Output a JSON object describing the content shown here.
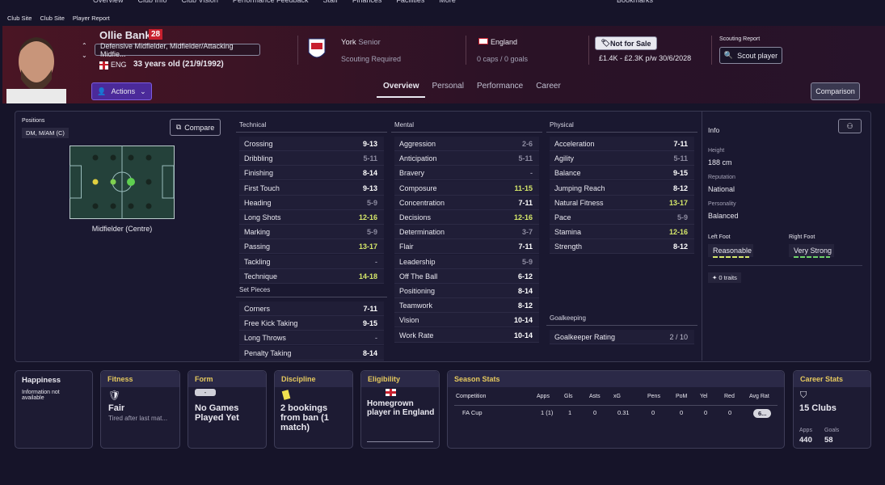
{
  "nav": {
    "items": [
      "Overview",
      "Club Info",
      "Club Vision",
      "Performance Feedback",
      "Staff",
      "Finances",
      "Facilities",
      "More"
    ],
    "bookmarks": "Bookmarks"
  },
  "breadcrumb": [
    "Club Site",
    "Club Site",
    "Player Report"
  ],
  "player": {
    "name": "Ollie Banks",
    "number": "28",
    "positions": "Defensive Midfielder, Midfielder/Attacking Midfie...",
    "nation": "ENG",
    "age": "33 years old (21/9/1992)"
  },
  "club": {
    "name": "York",
    "squad": "Senior",
    "status": "Scouting Required"
  },
  "international": {
    "country": "England",
    "record": "0 caps / 0 goals"
  },
  "transfer": {
    "status": "Not for Sale",
    "wage": "£1.4K - £2.3K p/w",
    "expiry": "30/6/2028"
  },
  "scouting": {
    "label": "Scouting Report",
    "button": "Scout player"
  },
  "actions": "Actions",
  "tabs": [
    "Overview",
    "Personal",
    "Performance",
    "Career"
  ],
  "comparison": "Comparison",
  "positions": {
    "label": "Positions",
    "value": "DM, M/AM (C)",
    "compare": "Compare",
    "role": "Midfielder (Centre)"
  },
  "technical": {
    "title": "Technical",
    "rows": [
      [
        "Crossing",
        "9-13"
      ],
      [
        "Dribbling",
        "5-11"
      ],
      [
        "Finishing",
        "8-14"
      ],
      [
        "First Touch",
        "9-13"
      ],
      [
        "Heading",
        "5-9"
      ],
      [
        "Long Shots",
        "12-16"
      ],
      [
        "Marking",
        "5-9"
      ],
      [
        "Passing",
        "13-17"
      ],
      [
        "Tackling",
        "-"
      ],
      [
        "Technique",
        "14-18"
      ]
    ]
  },
  "set_pieces": {
    "title": "Set Pieces",
    "rows": [
      [
        "Corners",
        "7-11"
      ],
      [
        "Free Kick Taking",
        "9-15"
      ],
      [
        "Long Throws",
        "-"
      ],
      [
        "Penalty Taking",
        "8-14"
      ]
    ]
  },
  "mental": {
    "title": "Mental",
    "rows": [
      [
        "Aggression",
        "2-6"
      ],
      [
        "Anticipation",
        "5-11"
      ],
      [
        "Bravery",
        "-"
      ],
      [
        "Composure",
        "11-15"
      ],
      [
        "Concentration",
        "7-11"
      ],
      [
        "Decisions",
        "12-16"
      ],
      [
        "Determination",
        "3-7"
      ],
      [
        "Flair",
        "7-11"
      ],
      [
        "Leadership",
        "5-9"
      ],
      [
        "Off The Ball",
        "6-12"
      ],
      [
        "Positioning",
        "8-14"
      ],
      [
        "Teamwork",
        "8-12"
      ],
      [
        "Vision",
        "10-14"
      ],
      [
        "Work Rate",
        "10-14"
      ]
    ]
  },
  "physical": {
    "title": "Physical",
    "rows": [
      [
        "Acceleration",
        "7-11"
      ],
      [
        "Agility",
        "5-11"
      ],
      [
        "Balance",
        "9-15"
      ],
      [
        "Jumping Reach",
        "8-12"
      ],
      [
        "Natural Fitness",
        "13-17"
      ],
      [
        "Pace",
        "5-9"
      ],
      [
        "Stamina",
        "12-16"
      ],
      [
        "Strength",
        "8-12"
      ]
    ]
  },
  "goalkeeping": {
    "title": "Goalkeeping",
    "rows": [
      [
        "Goalkeeper Rating",
        "2 / 10"
      ]
    ]
  },
  "info": {
    "title": "Info",
    "items": [
      [
        "Height",
        "188 cm"
      ],
      [
        "Reputation",
        "National"
      ],
      [
        "Personality",
        "Balanced"
      ]
    ],
    "left_foot": [
      "Left Foot",
      "Reasonable"
    ],
    "right_foot": [
      "Right Foot",
      "Very Strong"
    ],
    "traits": "0 traits"
  },
  "cards": {
    "happiness": {
      "title": "Happiness",
      "text": "Information not available"
    },
    "fitness": {
      "title": "Fitness",
      "value": "Fair",
      "text": "Tired after last mat..."
    },
    "form": {
      "title": "Form",
      "badge": "-",
      "value": "No Games Played Yet"
    },
    "discipline": {
      "title": "Discipline",
      "value": "2 bookings from ban (1 match)"
    },
    "eligibility": {
      "title": "Eligibility",
      "value": "Homegrown player in England"
    },
    "season": {
      "title": "Season Stats",
      "headers": [
        "Competition",
        "Apps",
        "Gls",
        "Asts",
        "xG",
        "Pens",
        "PoM",
        "Yel",
        "Red",
        "Avg Rat"
      ],
      "rows": [
        [
          "FA Cup",
          "1 (1)",
          1,
          0,
          0.31,
          0,
          0,
          0,
          0,
          "6..."
        ]
      ]
    },
    "career": {
      "title": "Career Stats",
      "value": "15 Clubs",
      "apps_label": "Apps",
      "apps": 440,
      "goals_label": "Goals",
      "goals": 58
    }
  }
}
